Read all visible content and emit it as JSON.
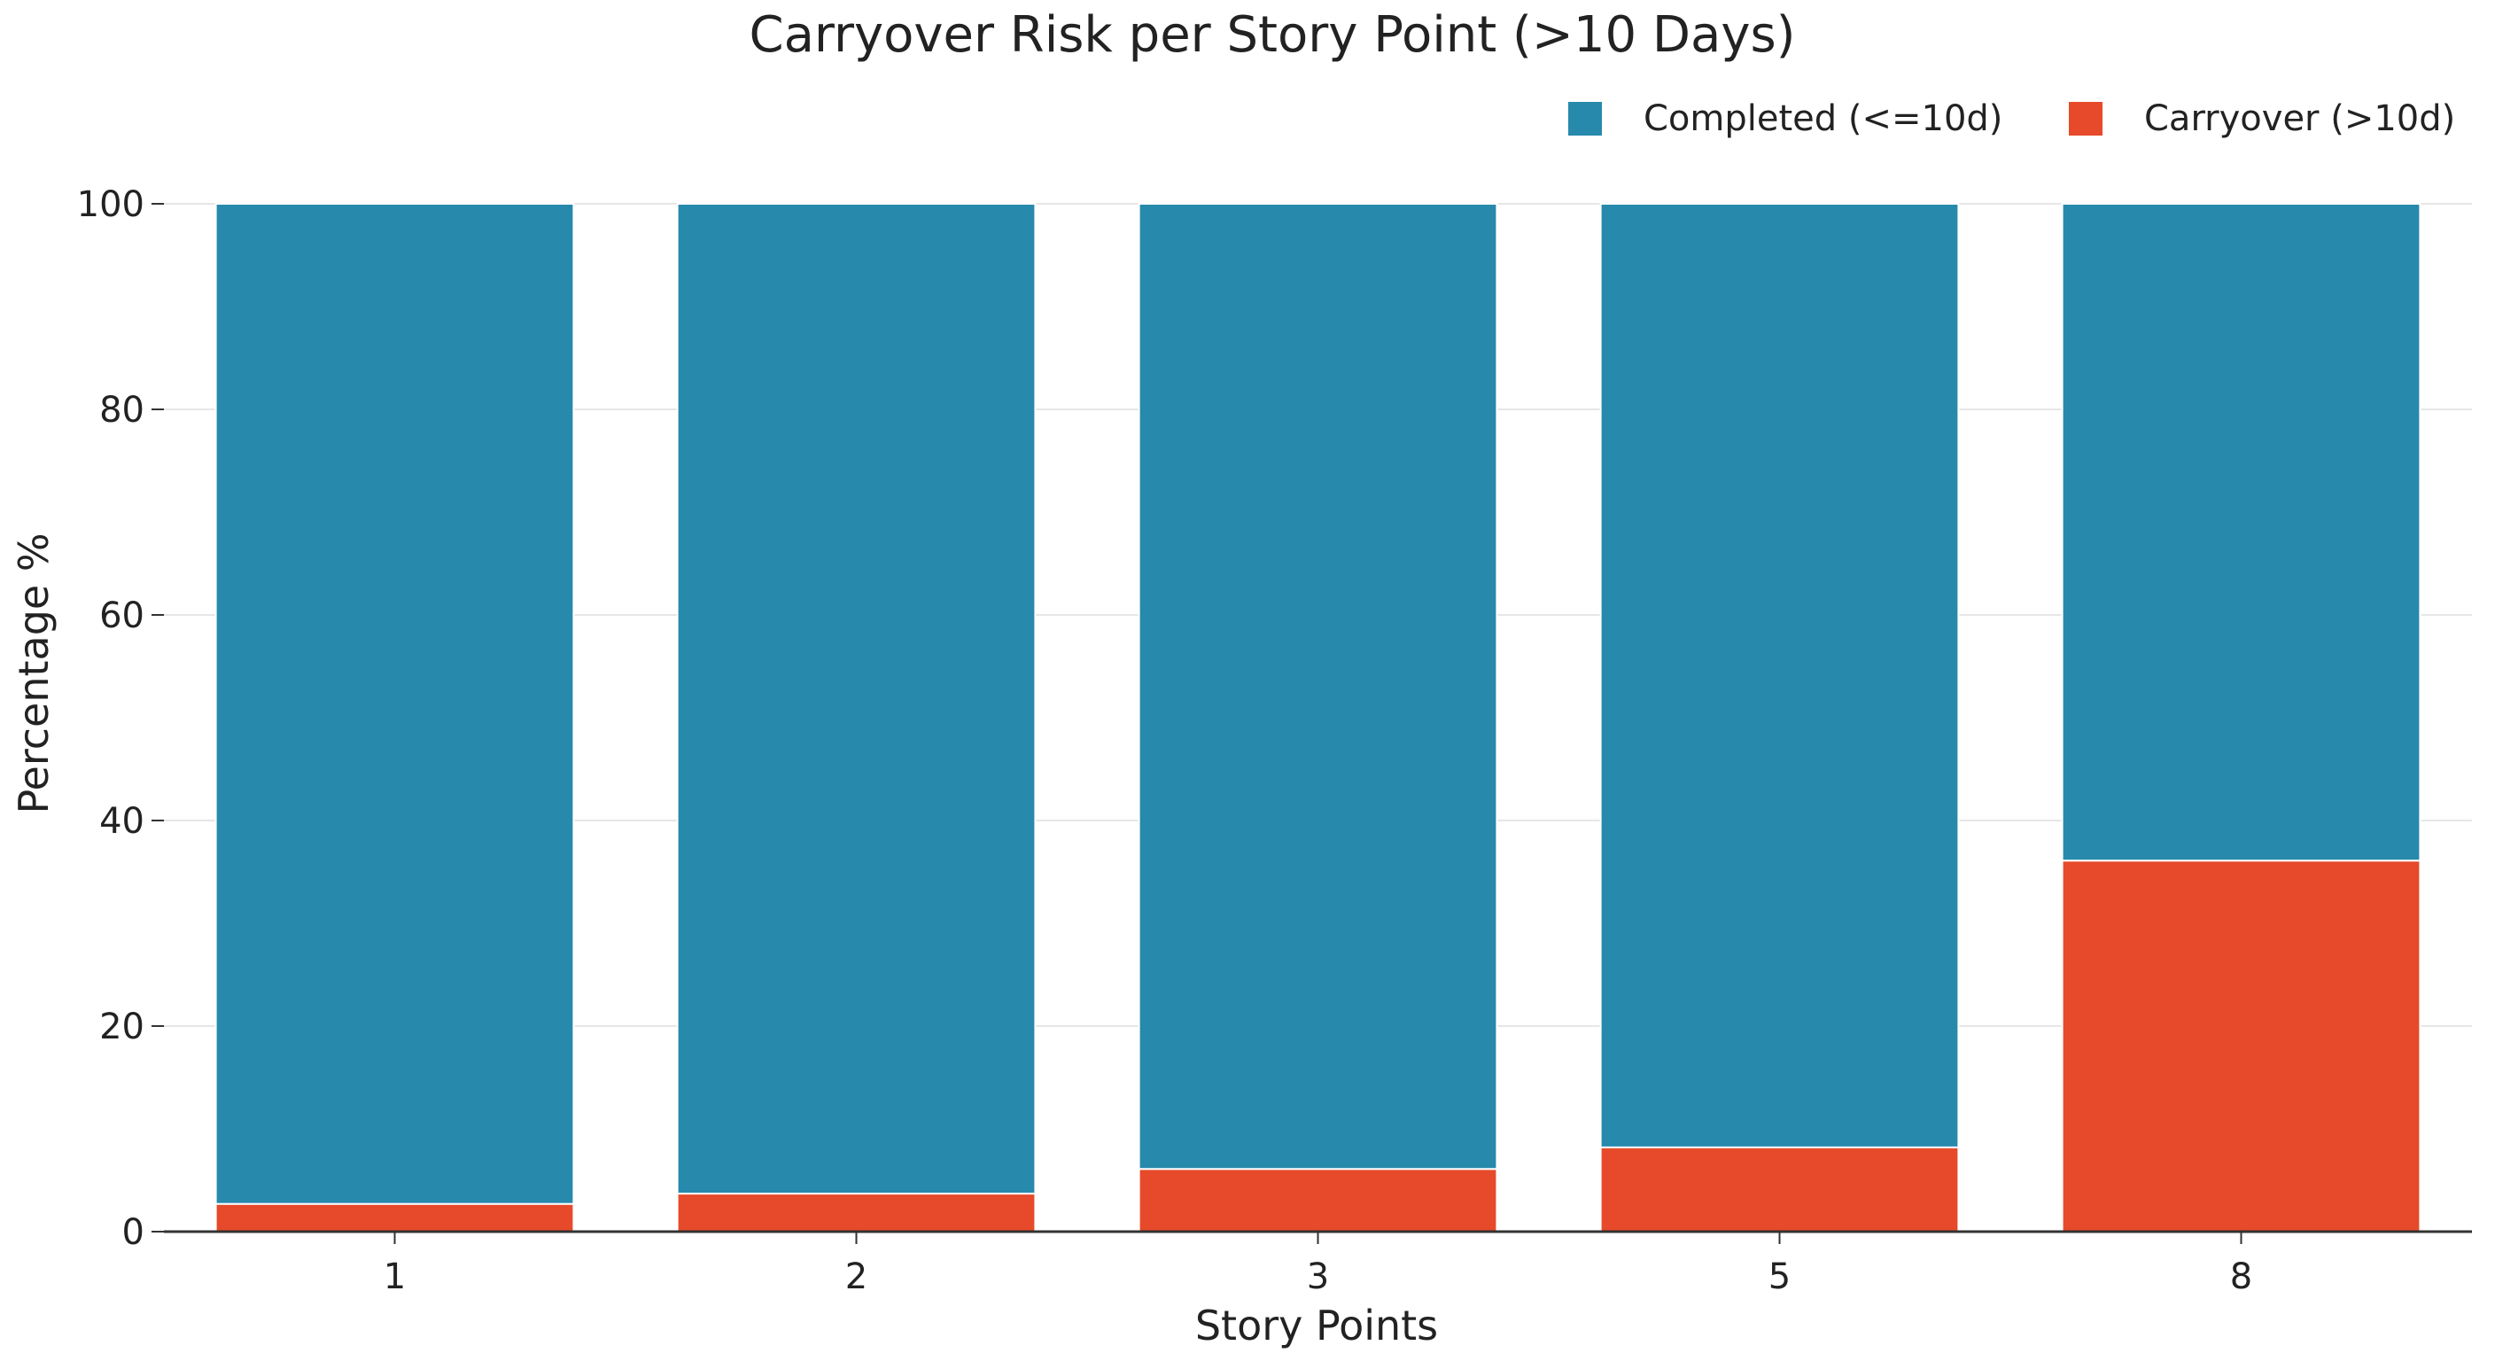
{
  "chart_data": {
    "type": "bar",
    "stacked": true,
    "title": "Carryover Risk per Story Point (>10 Days)",
    "xlabel": "Story Points",
    "ylabel": "Percentage %",
    "categories": [
      "1",
      "2",
      "3",
      "5",
      "8"
    ],
    "series": [
      {
        "name": "Carryover (>10d)",
        "color": "#E64A2A",
        "values": [
          2.7,
          3.7,
          6.1,
          8.2,
          36.1
        ]
      },
      {
        "name": "Completed (<=10d)",
        "color": "#2789AC",
        "values": [
          97.3,
          96.3,
          93.9,
          91.8,
          63.9
        ]
      }
    ],
    "ylim": [
      0,
      100
    ],
    "yticks": [
      0,
      20,
      40,
      60,
      80,
      100
    ],
    "grid": true,
    "legend_position": "top-right",
    "legend_order": [
      "Completed (<=10d)",
      "Carryover (>10d)"
    ]
  }
}
